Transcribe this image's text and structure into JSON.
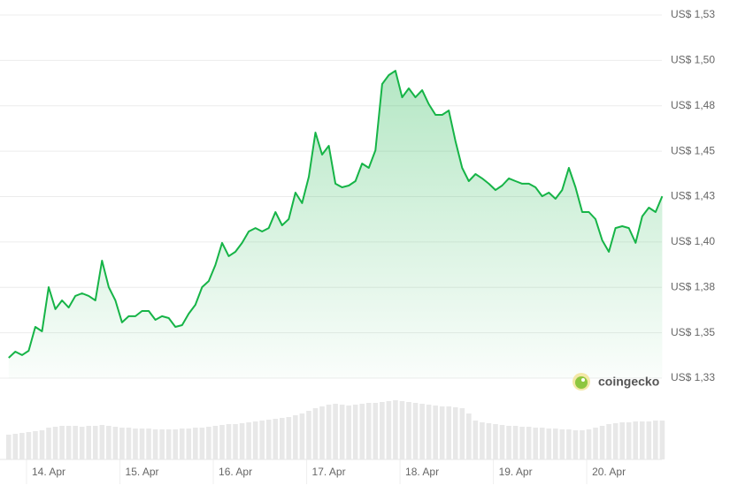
{
  "chart_data": {
    "type": "line",
    "categories": [
      null,
      null,
      null,
      null,
      null,
      null,
      "14. Apr",
      null,
      null,
      null,
      null,
      null,
      null,
      null,
      null,
      null,
      null,
      null,
      null,
      null,
      "15. Apr",
      null,
      null,
      null,
      null,
      null,
      null,
      null,
      null,
      null,
      null,
      null,
      null,
      null,
      "16. Apr",
      null,
      null,
      null,
      null,
      null,
      null,
      null,
      null,
      null,
      null,
      null,
      null,
      null,
      "17. Apr",
      null,
      null,
      null,
      null,
      null,
      null,
      null,
      null,
      null,
      null,
      null,
      null,
      null,
      "18. Apr",
      null,
      null,
      null,
      null,
      null,
      null,
      null,
      null,
      null,
      null,
      null,
      null,
      null,
      "19. Apr",
      null,
      null,
      null,
      null,
      null,
      null,
      null,
      null,
      null,
      null,
      null,
      null,
      null,
      "20. Apr",
      null,
      null,
      null,
      null,
      null,
      null,
      null,
      null
    ],
    "values": [
      1.3362,
      1.3396,
      1.3377,
      1.3401,
      1.3532,
      1.3508,
      1.3751,
      1.363,
      1.3678,
      1.3639,
      1.3703,
      1.3717,
      1.3703,
      1.3678,
      1.3897,
      1.3751,
      1.3678,
      1.3557,
      1.3591,
      1.3591,
      1.362,
      1.362,
      1.3571,
      1.3591,
      1.3581,
      1.3532,
      1.3542,
      1.3605,
      1.3654,
      1.3751,
      1.3785,
      1.3873,
      1.3995,
      1.3922,
      1.3946,
      1.3995,
      1.4058,
      1.4077,
      1.4058,
      1.4077,
      1.4165,
      1.4092,
      1.4126,
      1.4272,
      1.4214,
      1.4359,
      1.4603,
      1.4481,
      1.453,
      1.4321,
      1.4301,
      1.4311,
      1.4335,
      1.4432,
      1.4408,
      1.4505,
      1.487,
      1.4919,
      1.4943,
      1.4797,
      1.4846,
      1.4797,
      1.4836,
      1.4759,
      1.47,
      1.47,
      1.4724,
      1.4554,
      1.4408,
      1.4335,
      1.4374,
      1.435,
      1.4321,
      1.4286,
      1.4311,
      1.435,
      1.4335,
      1.4321,
      1.4321,
      1.4301,
      1.4252,
      1.4272,
      1.4238,
      1.4286,
      1.4408,
      1.4301,
      1.4165,
      1.4165,
      1.4126,
      1.4009,
      1.3946,
      1.4077,
      1.4087,
      1.4077,
      1.3995,
      1.4141,
      1.4189,
      1.4165,
      1.4252
    ],
    "color": "#16b447",
    "volume": [
      28,
      29,
      30,
      31,
      32,
      33,
      36,
      37,
      38,
      38,
      38,
      37,
      38,
      38,
      39,
      38,
      37,
      36,
      36,
      35,
      35,
      35,
      34,
      34,
      34,
      34,
      35,
      35,
      36,
      36,
      37,
      38,
      39,
      40,
      40,
      41,
      42,
      43,
      44,
      45,
      46,
      47,
      48,
      50,
      52,
      55,
      58,
      60,
      62,
      63,
      62,
      61,
      62,
      63,
      64,
      64,
      65,
      66,
      67,
      66,
      65,
      64,
      63,
      62,
      61,
      60,
      60,
      59,
      58,
      52,
      44,
      42,
      41,
      40,
      39,
      38,
      38,
      37,
      37,
      36,
      36,
      35,
      35,
      34,
      34,
      33,
      33,
      34,
      36,
      38,
      40,
      41,
      42,
      42,
      43,
      43,
      43,
      44,
      44
    ],
    "vlim": [
      0,
      70
    ],
    "ylim": [
      1.325,
      1.525
    ],
    "yticks": [
      {
        "value": 1.325,
        "label": "US$ 1,33"
      },
      {
        "value": 1.35,
        "label": "US$ 1,35"
      },
      {
        "value": 1.375,
        "label": "US$ 1,38"
      },
      {
        "value": 1.4,
        "label": "US$ 1,40"
      },
      {
        "value": 1.425,
        "label": "US$ 1,43"
      },
      {
        "value": 1.45,
        "label": "US$ 1,45"
      },
      {
        "value": 1.475,
        "label": "US$ 1,48"
      },
      {
        "value": 1.5,
        "label": "US$ 1,50"
      },
      {
        "value": 1.525,
        "label": "US$ 1,53"
      }
    ],
    "grid": true,
    "watermark": "coingecko"
  }
}
